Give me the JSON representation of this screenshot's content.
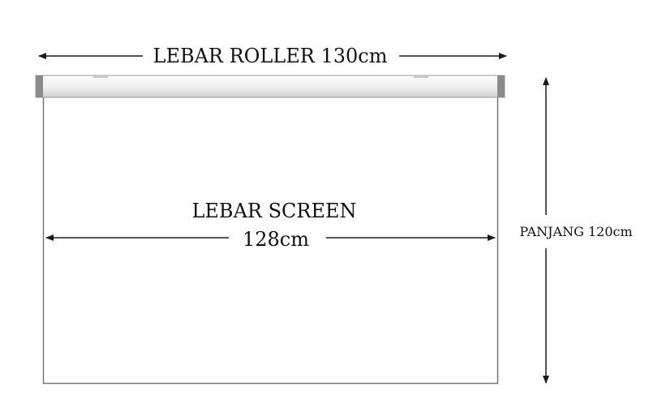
{
  "labels": {
    "roller_width": "LEBAR ROLLER 130cm",
    "screen_width_line1": "LEBAR SCREEN",
    "screen_width_line2": "128cm",
    "height": "PANJANG 120cm"
  },
  "colors": {
    "stroke": "#1a1a1a",
    "roller_end": "#8a8a8a",
    "roller_light": "#f7f7f7",
    "roller_dark": "#d0d0d0",
    "screen_border": "#777777"
  }
}
